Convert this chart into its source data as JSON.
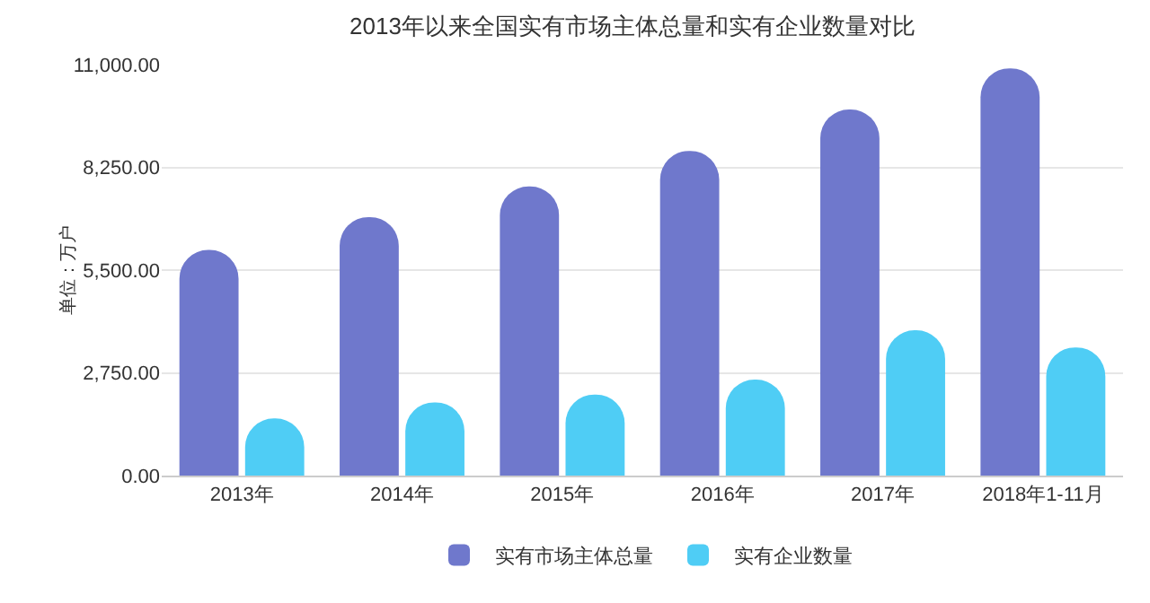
{
  "chart_data": {
    "type": "bar",
    "title": "2013年以来全国实有市场主体总量和实有企业数量对比",
    "ylabel": "单位：万户",
    "categories": [
      "2013年",
      "2014年",
      "2015年",
      "2016年",
      "2017年",
      "2018年1-11月"
    ],
    "series": [
      {
        "name": "实有市场主体总量",
        "color": "#6f78cc",
        "values": [
          6040,
          6920,
          7740,
          8690,
          9800,
          10900
        ]
      },
      {
        "name": "实有企业数量",
        "color": "#4fcdf5",
        "values": [
          1530,
          1960,
          2170,
          2570,
          3890,
          3430
        ]
      }
    ],
    "ylim": [
      0,
      11000
    ],
    "yticks": [
      {
        "value": 0,
        "label": "0.00"
      },
      {
        "value": 2750,
        "label": "2,750.00"
      },
      {
        "value": 5500,
        "label": "5,500.00"
      },
      {
        "value": 8250,
        "label": "8,250.00"
      },
      {
        "value": 11000,
        "label": "11,000.00"
      }
    ],
    "grid": "y",
    "legend": "bottom"
  }
}
